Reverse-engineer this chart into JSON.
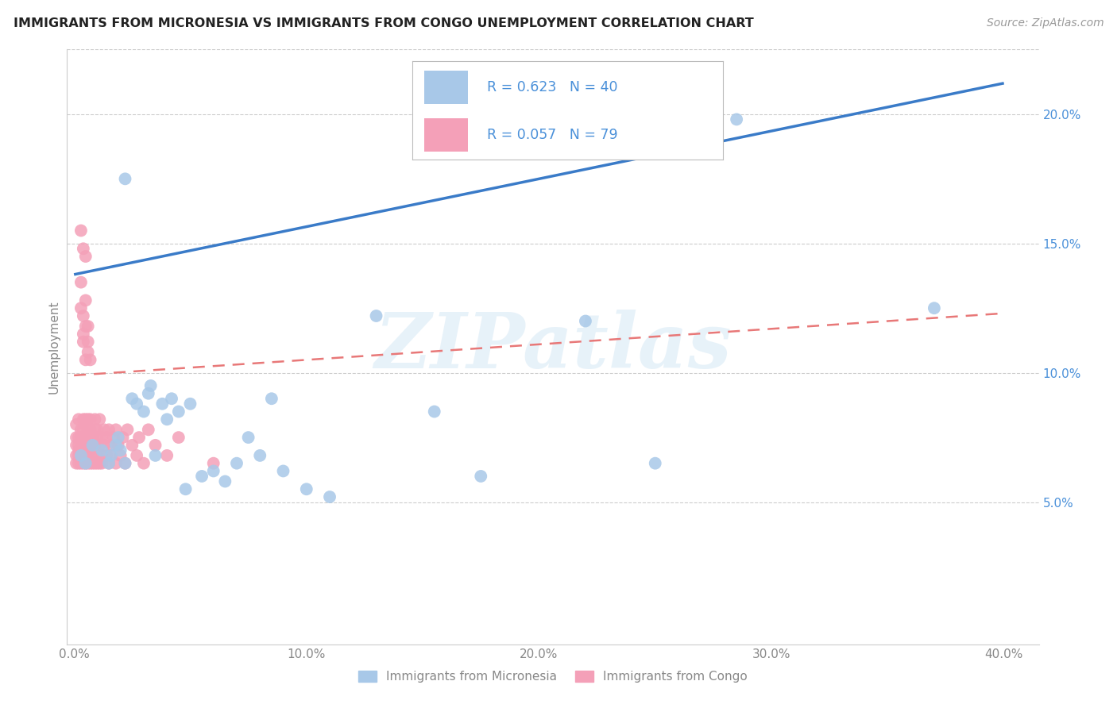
{
  "title": "IMMIGRANTS FROM MICRONESIA VS IMMIGRANTS FROM CONGO UNEMPLOYMENT CORRELATION CHART",
  "source": "Source: ZipAtlas.com",
  "ylabel": "Unemployment",
  "x_ticks": [
    0.0,
    0.1,
    0.2,
    0.3,
    0.4
  ],
  "x_tick_labels": [
    "0.0%",
    "10.0%",
    "20.0%",
    "30.0%",
    "40.0%"
  ],
  "y_ticks_right": [
    0.05,
    0.1,
    0.15,
    0.2
  ],
  "y_tick_labels_right": [
    "5.0%",
    "10.0%",
    "15.0%",
    "20.0%"
  ],
  "xlim": [
    -0.003,
    0.415
  ],
  "ylim": [
    -0.005,
    0.225
  ],
  "micronesia_color": "#a8c8e8",
  "congo_color": "#f4a0b8",
  "micronesia_line_color": "#3a7bc8",
  "congo_line_color": "#e87878",
  "watermark": "ZIPatlas",
  "blue_text_color": "#4a90d9",
  "grid_color": "#cccccc",
  "tick_label_color": "#888888",
  "title_color": "#222222",
  "source_color": "#999999",
  "mic_line_x0": 0.0,
  "mic_line_y0": 0.138,
  "mic_line_x1": 0.4,
  "mic_line_y1": 0.212,
  "congo_line_x0": 0.0,
  "congo_line_y0": 0.099,
  "congo_line_x1": 0.4,
  "congo_line_y1": 0.123,
  "micronesia_scatter_x": [
    0.003,
    0.005,
    0.022,
    0.008,
    0.012,
    0.015,
    0.016,
    0.018,
    0.019,
    0.02,
    0.022,
    0.025,
    0.027,
    0.03,
    0.032,
    0.033,
    0.035,
    0.038,
    0.04,
    0.042,
    0.045,
    0.048,
    0.05,
    0.055,
    0.06,
    0.065,
    0.07,
    0.075,
    0.08,
    0.085,
    0.09,
    0.1,
    0.11,
    0.13,
    0.155,
    0.175,
    0.22,
    0.25,
    0.285,
    0.37
  ],
  "micronesia_scatter_y": [
    0.068,
    0.065,
    0.175,
    0.072,
    0.07,
    0.065,
    0.068,
    0.072,
    0.075,
    0.07,
    0.065,
    0.09,
    0.088,
    0.085,
    0.092,
    0.095,
    0.068,
    0.088,
    0.082,
    0.09,
    0.085,
    0.055,
    0.088,
    0.06,
    0.062,
    0.058,
    0.065,
    0.075,
    0.068,
    0.09,
    0.062,
    0.055,
    0.052,
    0.122,
    0.085,
    0.06,
    0.12,
    0.065,
    0.198,
    0.125
  ],
  "congo_scatter_x": [
    0.001,
    0.001,
    0.001,
    0.001,
    0.001,
    0.002,
    0.002,
    0.002,
    0.002,
    0.002,
    0.002,
    0.003,
    0.003,
    0.003,
    0.003,
    0.003,
    0.004,
    0.004,
    0.004,
    0.004,
    0.004,
    0.005,
    0.005,
    0.005,
    0.005,
    0.005,
    0.006,
    0.006,
    0.006,
    0.006,
    0.006,
    0.007,
    0.007,
    0.007,
    0.007,
    0.007,
    0.008,
    0.008,
    0.008,
    0.008,
    0.009,
    0.009,
    0.009,
    0.009,
    0.01,
    0.01,
    0.01,
    0.01,
    0.011,
    0.011,
    0.011,
    0.012,
    0.012,
    0.012,
    0.013,
    0.013,
    0.014,
    0.014,
    0.015,
    0.015,
    0.016,
    0.016,
    0.017,
    0.018,
    0.018,
    0.019,
    0.02,
    0.021,
    0.022,
    0.023,
    0.025,
    0.027,
    0.028,
    0.03,
    0.032,
    0.035,
    0.04,
    0.045,
    0.06
  ],
  "congo_scatter_y": [
    0.068,
    0.072,
    0.075,
    0.065,
    0.08,
    0.07,
    0.065,
    0.075,
    0.068,
    0.082,
    0.072,
    0.078,
    0.065,
    0.07,
    0.075,
    0.068,
    0.072,
    0.078,
    0.065,
    0.082,
    0.07,
    0.068,
    0.075,
    0.082,
    0.065,
    0.07,
    0.078,
    0.065,
    0.072,
    0.082,
    0.068,
    0.075,
    0.065,
    0.078,
    0.07,
    0.082,
    0.072,
    0.068,
    0.075,
    0.065,
    0.078,
    0.065,
    0.072,
    0.082,
    0.068,
    0.075,
    0.065,
    0.078,
    0.072,
    0.065,
    0.082,
    0.068,
    0.075,
    0.065,
    0.078,
    0.072,
    0.068,
    0.075,
    0.065,
    0.078,
    0.072,
    0.068,
    0.075,
    0.065,
    0.078,
    0.072,
    0.068,
    0.075,
    0.065,
    0.078,
    0.072,
    0.068,
    0.075,
    0.065,
    0.078,
    0.072,
    0.068,
    0.075,
    0.065
  ],
  "congo_high_x": [
    0.003,
    0.004,
    0.003,
    0.005,
    0.005,
    0.004,
    0.006,
    0.006,
    0.007,
    0.005,
    0.004,
    0.006,
    0.003,
    0.005,
    0.004
  ],
  "congo_high_y": [
    0.155,
    0.148,
    0.135,
    0.145,
    0.128,
    0.122,
    0.118,
    0.112,
    0.105,
    0.118,
    0.112,
    0.108,
    0.125,
    0.105,
    0.115
  ]
}
